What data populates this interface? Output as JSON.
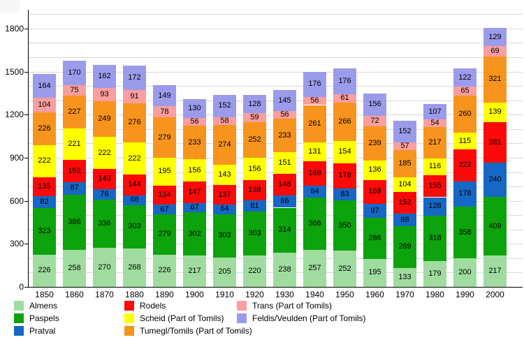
{
  "chart_data": {
    "type": "bar",
    "stacked": true,
    "title": "",
    "xlabel": "",
    "ylabel": "",
    "categories": [
      "1850",
      "1860",
      "1870",
      "1880",
      "1890",
      "1900",
      "1910",
      "1920",
      "1930",
      "1940",
      "1950",
      "1960",
      "1970",
      "1980",
      "1990",
      "2000"
    ],
    "series": [
      {
        "name": "Almens",
        "color": "#a0dca0",
        "values": [
          226,
          258,
          270,
          268,
          226,
          217,
          205,
          220,
          238,
          257,
          252,
          195,
          133,
          179,
          200,
          217
        ]
      },
      {
        "name": "Paspels",
        "color": "#0ca30c",
        "values": [
          323,
          386,
          336,
          303,
          279,
          302,
          303,
          303,
          314,
          366,
          350,
          286,
          289,
          318,
          358,
          409
        ]
      },
      {
        "name": "Pratval",
        "color": "#1668c4",
        "values": [
          82,
          87,
          76,
          68,
          67,
          67,
          64,
          81,
          86,
          84,
          83,
          97,
          88,
          128,
          178,
          240
        ]
      },
      {
        "name": "Rodels",
        "color": "#fb0a0a",
        "values": [
          135,
          152,
          140,
          144,
          134,
          147,
          137,
          138,
          148,
          168,
          178,
          168,
          152,
          155,
          222,
          281
        ]
      },
      {
        "name": "Scheid (Part of Tomils)",
        "color": "#ffff00",
        "values": [
          222,
          221,
          222,
          222,
          195,
          156,
          143,
          156,
          151,
          131,
          154,
          136,
          104,
          116,
          115,
          139
        ]
      },
      {
        "name": "Tumegl/Tomils (Part of Tomils)",
        "color": "#f7941e",
        "values": [
          226,
          227,
          249,
          276,
          279,
          233,
          274,
          252,
          233,
          261,
          266,
          239,
          185,
          217,
          260,
          321
        ]
      },
      {
        "name": "Trans (Part of Tomils)",
        "color": "#fa9e9e",
        "values": [
          104,
          75,
          93,
          91,
          78,
          56,
          58,
          59,
          56,
          56,
          61,
          72,
          57,
          54,
          65,
          69
        ]
      },
      {
        "name": "Feldis/Veulden (Part of Tomils)",
        "color": "#9b9beb",
        "values": [
          164,
          170,
          162,
          172,
          149,
          130,
          152,
          128,
          145,
          176,
          176,
          156,
          152,
          107,
          122,
          129
        ]
      }
    ],
    "ylim": [
      0,
      1900
    ],
    "ytick_step": 300,
    "grid_step": 100,
    "grid": true,
    "yticklabels": [
      "0",
      "300",
      "600",
      "900",
      "1200",
      "1500",
      "1800"
    ],
    "legend_position": "bottom",
    "legend_columns": [
      [
        0,
        1,
        2
      ],
      [
        3,
        4,
        5
      ],
      [
        6,
        7
      ]
    ],
    "value_labels_shown": true
  }
}
